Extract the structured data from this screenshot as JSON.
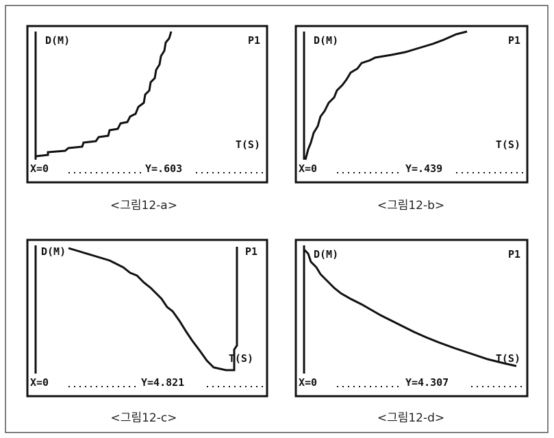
{
  "panels": [
    {
      "y_label": "D(M)",
      "plot_label": "P1",
      "x_label": "T(S)",
      "cursor_x": "X=0",
      "cursor_y": "Y=.603",
      "caption": "<그림12-a>"
    },
    {
      "y_label": "D(M)",
      "plot_label": "P1",
      "x_label": "T(S)",
      "cursor_x": "X=0",
      "cursor_y": "Y=.439",
      "caption": "<그림12-b>"
    },
    {
      "y_label": "D(M)",
      "plot_label": "P1",
      "x_label": "T(S)",
      "cursor_x": "X=0",
      "cursor_y": "Y=4.821",
      "caption": "<그림12-c>"
    },
    {
      "y_label": "D(M)",
      "plot_label": "P1",
      "x_label": "T(S)",
      "cursor_x": "X=0",
      "cursor_y": "Y=4.307",
      "caption": "<그림12-d>"
    }
  ]
}
